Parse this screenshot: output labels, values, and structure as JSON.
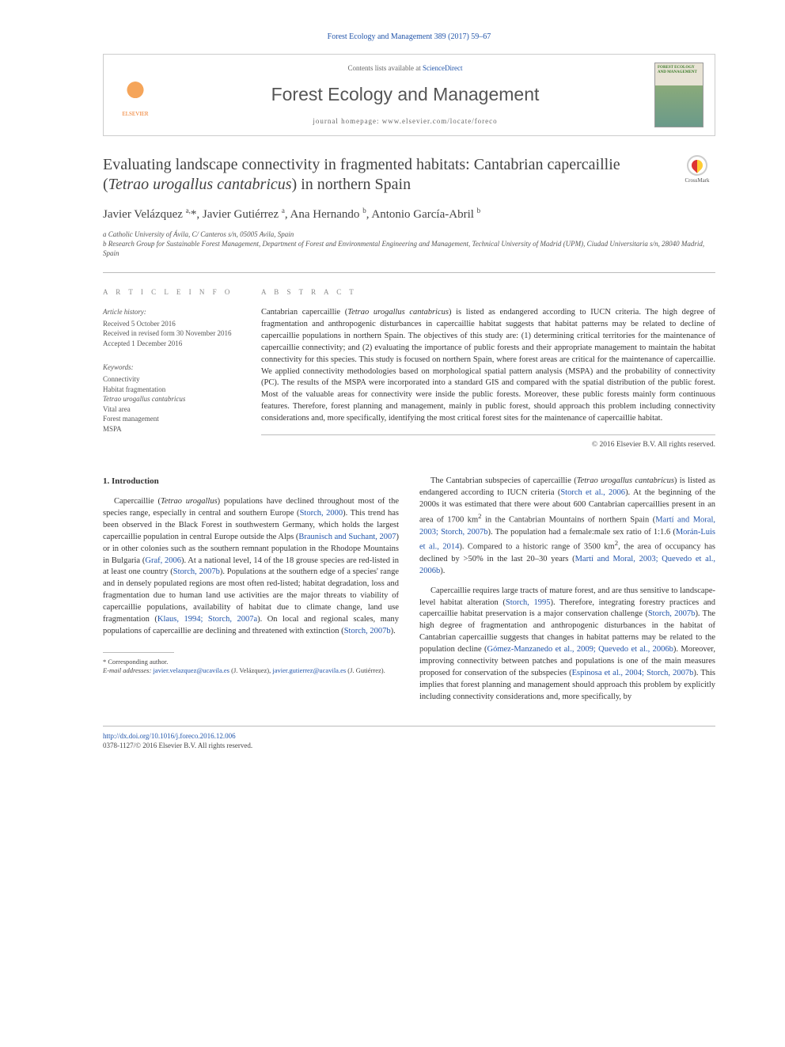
{
  "citation": {
    "text_before": "",
    "link_text": "Forest Ecology and Management 389 (2017) 59–67"
  },
  "header": {
    "contents_before": "Contents lists available at ",
    "contents_link": "ScienceDirect",
    "journal_name": "Forest Ecology and Management",
    "homepage": "journal homepage: www.elsevier.com/locate/foreco",
    "elsevier_label": "ELSEVIER",
    "cover_text": "FOREST ECOLOGY AND MANAGEMENT"
  },
  "crossmark_label": "CrossMark",
  "title_plain": "Evaluating landscape connectivity in fragmented habitats: Cantabrian capercaillie (",
  "title_italic": "Tetrao urogallus cantabricus",
  "title_after": ") in northern Spain",
  "authors_html": "Javier Velázquez <sup>a,</sup>*, Javier Gutiérrez <sup>a</sup>, Ana Hernando <sup>b</sup>, Antonio García-Abril <sup>b</sup>",
  "affiliations": [
    "a Catholic University of Ávila, C/ Canteros s/n, 05005 Avila, Spain",
    "b Research Group for Sustainable Forest Management, Department of Forest and Environmental Engineering and Management, Technical University of Madrid (UPM), Ciudad Universitaria s/n, 28040 Madrid, Spain"
  ],
  "info": {
    "heading": "A R T I C L E   I N F O",
    "history_label": "Article history:",
    "history": [
      "Received 5 October 2016",
      "Received in revised form 30 November 2016",
      "Accepted 1 December 2016"
    ],
    "keywords_label": "Keywords:",
    "keywords": [
      "Connectivity",
      "Habitat fragmentation",
      "Tetrao urogallus cantabricus",
      "Vital area",
      "Forest management",
      "MSPA"
    ]
  },
  "abstract": {
    "heading": "A B S T R A C T",
    "text": "Cantabrian capercaillie (<span class=\"italic\">Tetrao urogallus cantabricus</span>) is listed as endangered according to IUCN criteria. The high degree of fragmentation and anthropogenic disturbances in capercaillie habitat suggests that habitat patterns may be related to decline of capercaillie populations in northern Spain. The objectives of this study are: (1) determining critical territories for the maintenance of capercaillie connectivity; and (2) evaluating the importance of public forests and their appropriate management to maintain the habitat connectivity for this species. This study is focused on northern Spain, where forest areas are critical for the maintenance of capercaillie. We applied connectivity methodologies based on morphological spatial pattern analysis (MSPA) and the probability of connectivity (PC). The results of the MSPA were incorporated into a standard GIS and compared with the spatial distribution of the public forest. Most of the valuable areas for connectivity were inside the public forests. Moreover, these public forests mainly form continuous features. Therefore, forest planning and management, mainly in public forest, should approach this problem including connectivity considerations and, more specifically, identifying the most critical forest sites for the maintenance of capercaillie habitat.",
    "copyright": "© 2016 Elsevier B.V. All rights reserved."
  },
  "body": {
    "section_heading": "1. Introduction",
    "left_paras": [
      "Capercaillie (<span class=\"italic\">Tetrao urogallus</span>) populations have declined throughout most of the species range, especially in central and southern Europe (<a class=\"ref\">Storch, 2000</a>). This trend has been observed in the Black Forest in southwestern Germany, which holds the largest capercaillie population in central Europe outside the Alps (<a class=\"ref\">Braunisch and Suchant, 2007</a>) or in other colonies such as the southern remnant population in the Rhodope Mountains in Bulgaria (<a class=\"ref\">Graf, 2006</a>). At a national level, 14 of the 18 grouse species are red-listed in at least one country (<a class=\"ref\">Storch, 2007b</a>). Populations at the southern edge of a species' range and in densely populated regions are most often red-listed; habitat degradation, loss and fragmentation due to human land use activities are the major threats to viability of capercaillie populations, availability of habitat due to climate change, land use fragmentation (<a class=\"ref\">Klaus, 1994; Storch, 2007a</a>). On local and regional scales, many populations of capercaillie are declining and threatened with extinction (<a class=\"ref\">Storch, 2007b</a>)."
    ],
    "right_paras": [
      "The Cantabrian subspecies of capercaillie (<span class=\"italic\">Tetrao urogallus cantabricus</span>) is listed as endangered according to IUCN criteria (<a class=\"ref\">Storch et al., 2006</a>). At the beginning of the 2000s it was estimated that there were about 600 Cantabrian capercaillies present in an area of 1700 km<sup>2</sup> in the Cantabrian Mountains of northern Spain (<a class=\"ref\">Martí and Moral, 2003; Storch, 2007b</a>). The population had a female:male sex ratio of 1:1.6 (<a class=\"ref\">Morán-Luis et al., 2014</a>). Compared to a historic range of 3500 km<sup>2</sup>, the area of occupancy has declined by &gt;50% in the last 20–30 years (<a class=\"ref\">Martí and Moral, 2003; Quevedo et al., 2006b</a>).",
      "Capercaillie requires large tracts of mature forest, and are thus sensitive to landscape-level habitat alteration (<a class=\"ref\">Storch, 1995</a>). Therefore, integrating forestry practices and capercaillie habitat preservation is a major conservation challenge (<a class=\"ref\">Storch, 2007b</a>). The high degree of fragmentation and anthropogenic disturbances in the habitat of Cantabrian capercaillie suggests that changes in habitat patterns may be related to the population decline (<a class=\"ref\">Gómez-Manzanedo et al., 2009; Quevedo et al., 2006b</a>). Moreover, improving connectivity between patches and populations is one of the main measures proposed for conservation of the subspecies (<a class=\"ref\">Espinosa et al., 2004; Storch, 2007b</a>). This implies that forest planning and management should approach this problem by explicitly including connectivity considerations and, more specifically, by"
    ]
  },
  "footnotes": {
    "corresponding": "* Corresponding author.",
    "email_label": "E-mail addresses: ",
    "emails": [
      {
        "addr": "javier.velazquez@ucavila.es",
        "who": " (J. Velázquez), "
      },
      {
        "addr": "javier.gutierrez@ucavila.es",
        "who": " (J. Gutiérrez)."
      }
    ]
  },
  "doi": {
    "url": "http://dx.doi.org/10.1016/j.foreco.2016.12.006",
    "issn_line": "0378-1127/© 2016 Elsevier B.V. All rights reserved."
  },
  "colors": {
    "link": "#2255aa",
    "text": "#333333",
    "muted": "#666666",
    "rule": "#bbbbbb"
  }
}
